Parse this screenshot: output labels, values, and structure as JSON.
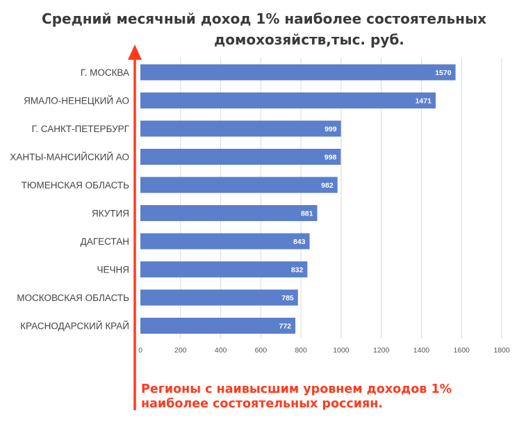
{
  "chart_data": {
    "type": "bar",
    "orientation": "horizontal",
    "title": "Средний месячный доход 1% наиболее состоятельных домохозяйств,тыс. руб.",
    "title_line1": "Средний месячный доход 1% наиболее состоятельных",
    "title_line2": "домохозяйств,тыс. руб.",
    "categories": [
      "Г. МОСКВА",
      "ЯМАЛО-НЕНЕЦКИЙ АО",
      "Г. САНКТ-ПЕТЕРБУРГ",
      "ХАНТЫ-МАНСИЙСКИЙ АО",
      "ТЮМЕНСКАЯ ОБЛАСТЬ",
      "ЯКУТИЯ",
      "ДАГЕСТАН",
      "ЧЕЧНЯ",
      "МОСКОВСКАЯ ОБЛАСТЬ",
      "КРАСНОДАРСКИЙ КРАЙ"
    ],
    "values": [
      1570,
      1471,
      999,
      998,
      982,
      881,
      843,
      832,
      785,
      772
    ],
    "xlim": [
      0,
      1800
    ],
    "xticks": [
      0,
      200,
      400,
      600,
      800,
      1000,
      1200,
      1400,
      1600,
      1800
    ],
    "grid": "vertical",
    "bar_color": "#5b7fcb",
    "arrow_color": "#ff3b1f"
  },
  "annotation": {
    "line1": "Регионы с наивысшим уровнем доходов 1%",
    "line2": "наиболее состоятельных россиян."
  }
}
